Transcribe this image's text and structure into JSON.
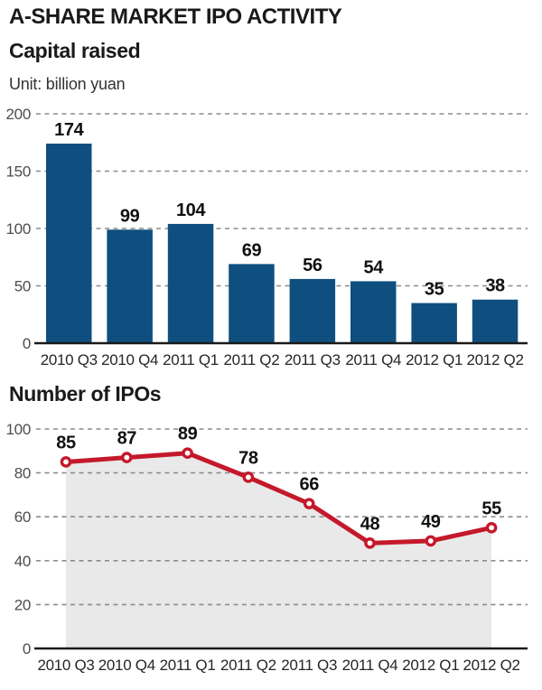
{
  "page": {
    "title": "A-SHARE MARKET IPO ACTIVITY",
    "background": "#ffffff"
  },
  "chart_data": [
    {
      "type": "bar",
      "title": "Capital raised",
      "unit_label": "Unit: billion yuan",
      "categories": [
        "2010 Q3",
        "2010 Q4",
        "2011 Q1",
        "2011 Q2",
        "2011 Q3",
        "2011 Q4",
        "2012 Q1",
        "2012 Q2"
      ],
      "values": [
        174,
        99,
        104,
        69,
        56,
        54,
        35,
        38
      ],
      "ylim": [
        0,
        200
      ],
      "yticks": [
        0,
        50,
        100,
        150,
        200
      ],
      "grid": "horizontal-dashed",
      "legend": "none",
      "bar_color": "#0F4F7F",
      "grid_color": "#8C8C8C",
      "axis_color": "#1a1a1a",
      "value_label_color": "#111111"
    },
    {
      "type": "line",
      "title": "Number of IPOs",
      "categories": [
        "2010 Q3",
        "2010 Q4",
        "2011 Q1",
        "2011 Q2",
        "2011 Q3",
        "2011 Q4",
        "2012 Q1",
        "2012 Q2"
      ],
      "values": [
        85,
        87,
        89,
        78,
        66,
        48,
        49,
        55
      ],
      "ylim": [
        0,
        100
      ],
      "yticks": [
        0,
        20,
        40,
        60,
        80,
        100
      ],
      "grid": "horizontal-dashed",
      "legend": "none",
      "line_color": "#C4192B",
      "marker": "open-circle",
      "marker_fill": "#ffffff",
      "area_fill": "#E9E9E9",
      "grid_color": "#8C8C8C",
      "axis_color": "#1a1a1a",
      "value_label_color": "#111111"
    }
  ]
}
